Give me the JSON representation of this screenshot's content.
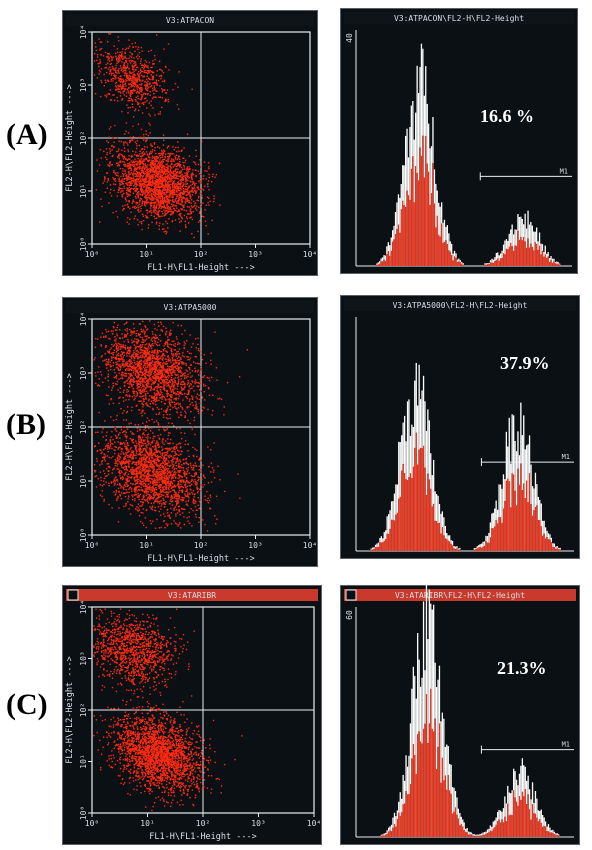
{
  "colors": {
    "screen": "#0b1014",
    "screen_edge": "#5a6066",
    "titlebar_dark": "#0e1418",
    "titlebar_red": "#c93a2c",
    "grid": "#e8eef2",
    "cells": "#ff2a12",
    "histogram_fill": "#e0321c",
    "histogram_outline": "#ffffff",
    "text_light": "#d9dfe4"
  },
  "chart_data": [
    {
      "panel": "A",
      "kind": "dot-plot",
      "type": "scatter",
      "title": "V3:ATPACON",
      "xlabel": "FL1-H\\FL1-Height --->",
      "ylabel": "FL2-H\\FL2-Height --->",
      "x_ticks": [
        "10⁰",
        "10¹",
        "10²",
        "10³",
        "10⁴"
      ],
      "y_ticks": [
        "10⁰",
        "10¹",
        "10²",
        "10³",
        "10⁴"
      ],
      "scale": "log",
      "quadrant_gate": {
        "x": 100,
        "y": 100
      },
      "populations": [
        {
          "x": 5,
          "y": 1500,
          "spread": 3,
          "n": 700
        },
        {
          "x": 15,
          "y": 15,
          "spread": 3.5,
          "n": 2200
        }
      ]
    },
    {
      "panel": "A",
      "kind": "histogram",
      "type": "bar",
      "title": "V3:ATPACON\\FL2-H\\FL2-Height",
      "scale": "log",
      "y_max_label": "40",
      "marker": {
        "label": "M1",
        "x_start": 200,
        "x_end": 10000,
        "percent": "16.6 %"
      },
      "peaks": [
        {
          "x": 15,
          "height": 33
        },
        {
          "x": 1200,
          "height": 9
        }
      ]
    },
    {
      "panel": "B",
      "kind": "dot-plot",
      "type": "scatter",
      "title": "V3:ATPA5000",
      "xlabel": "FL1-H\\FL1-Height --->",
      "ylabel": "FL2-H\\FL2-Height --->",
      "x_ticks": [
        "10⁰",
        "10¹",
        "10²",
        "10³",
        "10⁴"
      ],
      "y_ticks": [
        "10⁰",
        "10¹",
        "10²",
        "10³",
        "10⁴"
      ],
      "scale": "log",
      "quadrant_gate": {
        "x": 100,
        "y": 100
      },
      "populations": [
        {
          "x": 12,
          "y": 1200,
          "spread": 4,
          "n": 1900
        },
        {
          "x": 12,
          "y": 15,
          "spread": 4,
          "n": 2000
        }
      ]
    },
    {
      "panel": "B",
      "kind": "histogram",
      "type": "bar",
      "title": "V3:ATPA5000\\FL2-H\\FL2-Height",
      "scale": "log",
      "marker": {
        "label": "M1",
        "x_start": 200,
        "x_end": 10000,
        "percent": "37.9%"
      },
      "peaks": [
        {
          "x": 12,
          "height": 30
        },
        {
          "x": 900,
          "height": 24
        }
      ]
    },
    {
      "panel": "C",
      "kind": "dot-plot",
      "type": "scatter",
      "title": "V3:ATARIBR",
      "xlabel": "FL1-H\\FL1-Height --->",
      "ylabel": "FL2-H\\FL2-Height --->",
      "x_ticks": [
        "10⁰",
        "10¹",
        "10²",
        "10³",
        "10⁴"
      ],
      "y_ticks": [
        "10⁰",
        "10¹",
        "10²",
        "10³",
        "10⁴"
      ],
      "scale": "log",
      "quadrant_gate": {
        "x": 100,
        "y": 100
      },
      "populations": [
        {
          "x": 5,
          "y": 1500,
          "spread": 3.5,
          "n": 1100
        },
        {
          "x": 15,
          "y": 15,
          "spread": 3.5,
          "n": 2200
        }
      ]
    },
    {
      "panel": "C",
      "kind": "histogram",
      "type": "bar",
      "title": "V3:ATARIBR\\FL2-H\\FL2-Height",
      "scale": "log",
      "y_max_label": "60",
      "marker": {
        "label": "M1",
        "x_start": 200,
        "x_end": 10000,
        "percent": "21.3%"
      },
      "peaks": [
        {
          "x": 20,
          "height": 40
        },
        {
          "x": 1000,
          "height": 12
        }
      ]
    }
  ],
  "row_labels": [
    "(A)",
    "(B)",
    "(C)"
  ],
  "percentages": [
    "16.6 %",
    "37.9%",
    "21.3%"
  ]
}
